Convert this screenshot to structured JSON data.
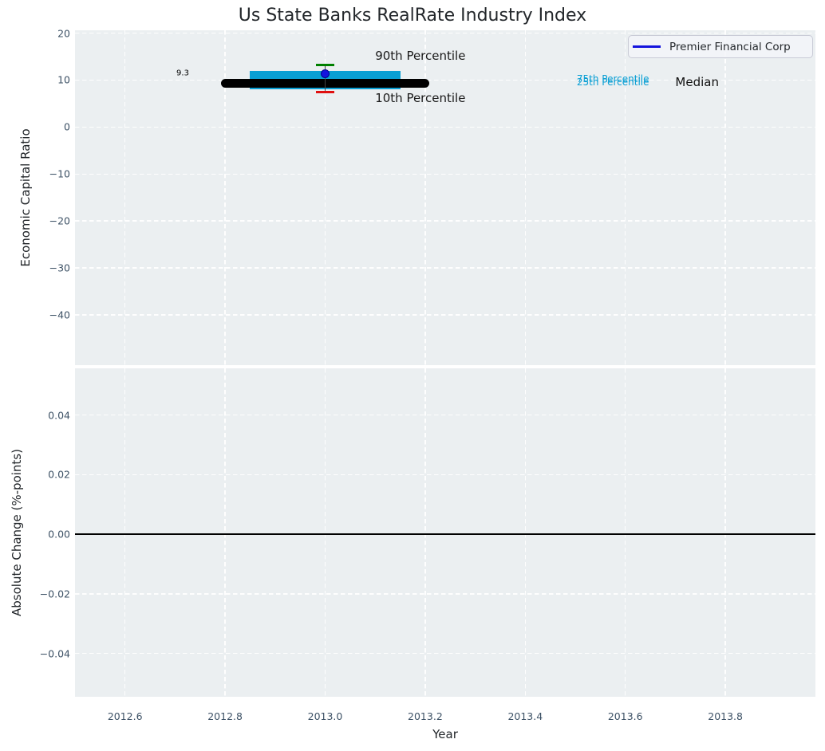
{
  "style": {
    "plot_background": "#ebeff1",
    "grid_color": "#ffffff",
    "tick_color": "#3e5266",
    "text_color": "#23272b"
  },
  "chart_data": [
    {
      "type": "boxplot",
      "title": "Us State Banks RealRate Industry Index",
      "xlabel": "Year",
      "ylabel": "Economic Capital Ratio",
      "xlim": [
        2012.5,
        2013.98
      ],
      "ylim": [
        -50.7,
        20.6
      ],
      "grid": true,
      "grid_style": "dashed",
      "xtick_values": [
        2012.6,
        2012.8,
        2013.0,
        2013.2,
        2013.4,
        2013.6,
        2013.8
      ],
      "xtick_labels": [
        "2012.6",
        "2012.8",
        "2013.0",
        "2013.2",
        "2013.4",
        "2013.6",
        "2013.8"
      ],
      "ytick_values": [
        20,
        10,
        0,
        -10,
        -20,
        -30,
        -40
      ],
      "ytick_labels": [
        "20",
        "10",
        "0",
        "−10",
        "−20",
        "−30",
        "−40"
      ],
      "legend": {
        "position": "upper right",
        "entries": [
          {
            "label": "Premier Financial Corp",
            "color": "#1414dd"
          }
        ]
      },
      "box": {
        "year": 2013.0,
        "company": "Premier Financial Corp",
        "company_value": 11.4,
        "median": 9.3,
        "median_label": "9.3",
        "p10": 7.5,
        "p25": 8.0,
        "p75": 11.9,
        "p90": 13.2,
        "box_year_span": [
          2012.85,
          2013.15
        ],
        "median_line_year_span": [
          2012.8,
          2013.2
        ]
      },
      "colors": {
        "box_fill": "#0a9fd4",
        "median_line": "#000000",
        "p90_cap": "#008000",
        "p10_cap": "#e01010",
        "whisker": "#444444",
        "company_marker": "#1414e0",
        "company_marker_edge": "#00008b"
      },
      "annotations": [
        {
          "text": "9.3",
          "x": 2012.728,
          "y": 11.35,
          "align": "right",
          "color": "#000000",
          "size": 10
        },
        {
          "text": "90th Percentile",
          "x": 2013.1,
          "y": 15.1,
          "align": "left",
          "color": "#1a1a1a",
          "size": 15
        },
        {
          "text": "10th Percentile",
          "x": 2013.1,
          "y": 6.1,
          "align": "left",
          "color": "#1a1a1a",
          "size": 15
        },
        {
          "text": "75th Percentile",
          "x": 2013.503,
          "y": 10.25,
          "align": "left",
          "color": "#0a9fd4",
          "size": 12
        },
        {
          "text": "25th Percentile",
          "x": 2013.503,
          "y": 9.62,
          "align": "left",
          "color": "#0a9fd4",
          "size": 12
        },
        {
          "text": "Median",
          "x": 2013.7,
          "y": 9.55,
          "align": "left",
          "color": "#111111",
          "size": 15
        }
      ]
    },
    {
      "type": "line",
      "title": "",
      "xlabel": "Year",
      "ylabel": "Absolute Change (%-points)",
      "xlim": [
        2012.5,
        2013.98
      ],
      "ylim": [
        -0.0545,
        0.0557
      ],
      "grid": true,
      "grid_style": "dashed",
      "xtick_values": [
        2012.6,
        2012.8,
        2013.0,
        2013.2,
        2013.4,
        2013.6,
        2013.8
      ],
      "xtick_labels": [
        "2012.6",
        "2012.8",
        "2013.0",
        "2013.2",
        "2013.4",
        "2013.6",
        "2013.8"
      ],
      "ytick_values": [
        0.04,
        0.02,
        0.0,
        -0.02,
        -0.04
      ],
      "ytick_labels": [
        "0.04",
        "0.02",
        "0.00",
        "−0.02",
        "−0.04"
      ],
      "hline": 0.0,
      "series": []
    }
  ]
}
